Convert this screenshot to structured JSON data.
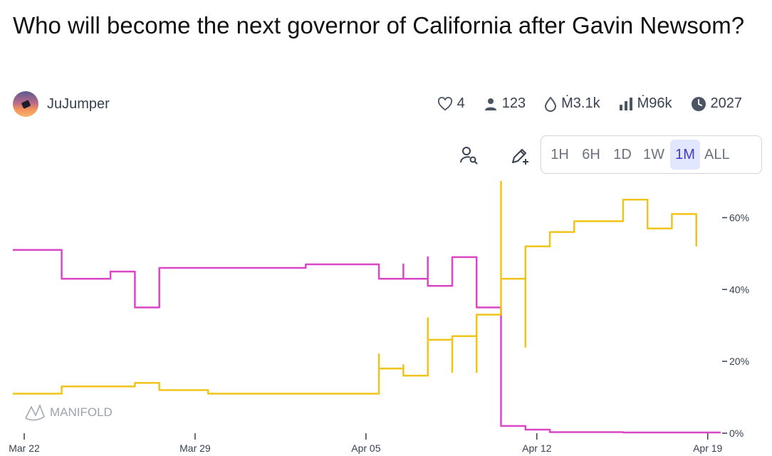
{
  "title": "Who will become the next governor of California after Gavin Newsom?",
  "author": {
    "name": "JuJumper"
  },
  "stats": {
    "likes": "4",
    "traders": "123",
    "liquidity": "Ṁ3.1k",
    "volume": "Ṁ96k",
    "close_year": "2027"
  },
  "range_buttons": [
    "1H",
    "6H",
    "1D",
    "1W",
    "1M",
    "ALL"
  ],
  "active_range": "1M",
  "watermark": "MANIFOLD",
  "colors": {
    "pink": "#d946c6",
    "yellow": "#f0c419",
    "active_bg": "#e0e7ff",
    "active_text": "#4338ca"
  },
  "chart_data": {
    "type": "line",
    "x_ticks": [
      "Mar 22",
      "Mar 29",
      "Apr 05",
      "Apr 12",
      "Apr 19"
    ],
    "y_ticks": [
      "60%",
      "40%",
      "20%",
      "0%"
    ],
    "ylim": [
      0,
      70
    ],
    "xlim": [
      "Mar 22",
      "Apr 20"
    ],
    "series": [
      {
        "color": "#d946c6",
        "x": [
          "Mar 22",
          "Mar 23",
          "Mar 24",
          "Mar 25",
          "Mar 26",
          "Mar 27",
          "Mar 27",
          "Mar 28",
          "Mar 30",
          "Apr 01",
          "Apr 03",
          "Apr 05",
          "Apr 06",
          "Apr 07",
          "Apr 07",
          "Apr 08",
          "Apr 08",
          "Apr 09",
          "Apr 09",
          "Apr 10",
          "Apr 10",
          "Apr 11",
          "Apr 11",
          "Apr 12",
          "Apr 13",
          "Apr 16",
          "Apr 20"
        ],
        "y": [
          51,
          51,
          43,
          43,
          45,
          43,
          35,
          46,
          46,
          46,
          47,
          47,
          43,
          47,
          43,
          49,
          41,
          41,
          49,
          43,
          35,
          15,
          2,
          1,
          0.3,
          0.2,
          0.2
        ]
      },
      {
        "color": "#f0c419",
        "x": [
          "Mar 22",
          "Mar 23",
          "Mar 24",
          "Mar 25",
          "Mar 27",
          "Mar 28",
          "Mar 30",
          "Apr 01",
          "Apr 03",
          "Apr 05",
          "Apr 06",
          "Apr 06",
          "Apr 07",
          "Apr 07",
          "Apr 08",
          "Apr 08",
          "Apr 09",
          "Apr 09",
          "Apr 10",
          "Apr 10",
          "Apr 11",
          "Apr 11",
          "Apr 11",
          "Apr 12",
          "Apr 12",
          "Apr 13",
          "Apr 14",
          "Apr 15",
          "Apr 16",
          "Apr 17",
          "Apr 18",
          "Apr 19",
          "Apr 19"
        ],
        "y": [
          11,
          11,
          13,
          13,
          14,
          12,
          11,
          11,
          11,
          11,
          22,
          18,
          19,
          16,
          32,
          26,
          17,
          27,
          17,
          33,
          57,
          70,
          43,
          24,
          52,
          56,
          59,
          59,
          65,
          57,
          61,
          60,
          52
        ]
      }
    ]
  }
}
